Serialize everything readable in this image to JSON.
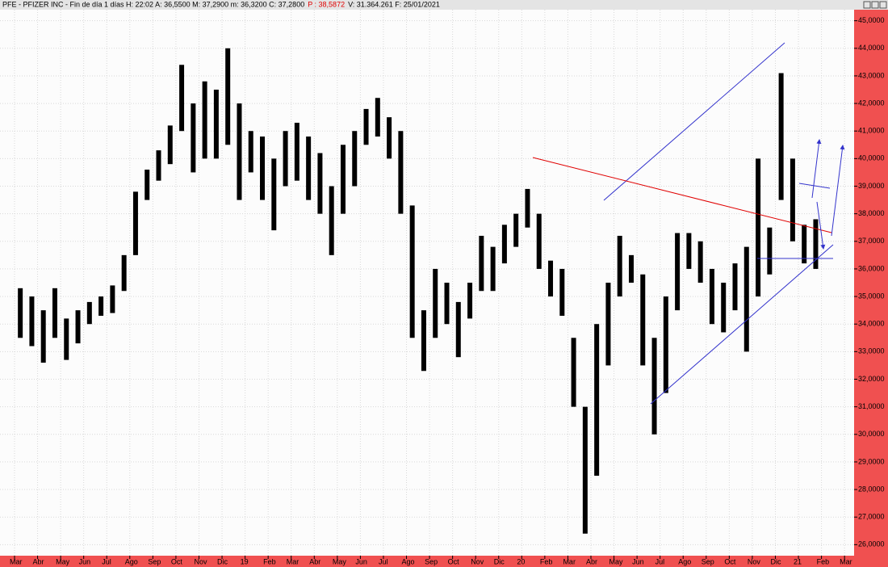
{
  "header": {
    "info": "PFE - PFIZER INC - Fin de día 1 días  H: 22:02  A: 36,5500  M: 37,2900  m: 36,3200  C: 37,2800",
    "p": "P : 38,5872",
    "rest": "V: 31.364.261  F: 25/01/2021"
  },
  "chart_data": {
    "type": "ohlc",
    "categories": [
      "Mar",
      null,
      "Abr",
      null,
      "May",
      null,
      "Jun",
      null,
      "Jul",
      null,
      "Ago",
      null,
      "Sep",
      null,
      "Oct",
      null,
      "Nov",
      null,
      "Dic",
      null,
      "19",
      null,
      "Feb",
      null,
      "Mar",
      null,
      "Abr",
      null,
      "May",
      null,
      "Jun",
      null,
      "Jul",
      null,
      "Ago",
      null,
      "Sep",
      null,
      "Oct",
      null,
      "Nov",
      null,
      "Dic",
      null,
      "20",
      null,
      "Feb",
      null,
      "Mar",
      null,
      "Abr",
      null,
      "May",
      null,
      "Jun",
      null,
      "Jul",
      null,
      "Ago",
      null,
      "Sep",
      null,
      "Oct",
      null,
      "Nov",
      null,
      "Dic",
      null,
      "21",
      null,
      "Feb",
      null,
      "Mar",
      null
    ],
    "lows": [
      33.5,
      33.2,
      32.6,
      33.5,
      32.7,
      33.3,
      34.0,
      34.3,
      34.4,
      35.2,
      36.5,
      38.5,
      39.2,
      39.8,
      41.0,
      39.5,
      40.0,
      40.0,
      40.5,
      38.5,
      39.5,
      38.5,
      37.4,
      39.0,
      39.2,
      38.5,
      38.0,
      36.5,
      38.0,
      39.0,
      40.5,
      40.8,
      40.0,
      38.0,
      33.5,
      32.3,
      33.5,
      34.0,
      32.8,
      34.2,
      35.2,
      35.2,
      36.2,
      36.8,
      37.5,
      36.0,
      35.0,
      34.3,
      31.0,
      26.4,
      28.5,
      32.5,
      35.0,
      35.5,
      32.5,
      30.0,
      31.5,
      34.5,
      36.0,
      35.5,
      34.0,
      33.7,
      34.5,
      33.0,
      35.0,
      35.8,
      38.5,
      37.0,
      36.2,
      36.0,
      null,
      null,
      null,
      null
    ],
    "highs": [
      35.3,
      35.0,
      34.5,
      35.3,
      34.2,
      34.5,
      34.8,
      35.0,
      35.4,
      36.5,
      38.8,
      39.6,
      40.3,
      41.2,
      43.4,
      42.0,
      42.8,
      42.5,
      44.0,
      42.0,
      41.0,
      40.8,
      40.0,
      41.0,
      41.3,
      40.8,
      40.2,
      39.0,
      40.5,
      41.0,
      41.8,
      42.2,
      41.5,
      41.0,
      38.3,
      34.5,
      36.0,
      35.5,
      34.8,
      35.5,
      37.2,
      36.8,
      37.6,
      38.0,
      38.9,
      38.0,
      36.3,
      36.0,
      33.5,
      31.0,
      34.0,
      35.5,
      37.2,
      36.5,
      35.8,
      33.5,
      35.0,
      37.3,
      37.3,
      37.0,
      36.0,
      35.5,
      36.2,
      36.8,
      40.0,
      37.5,
      43.1,
      40.0,
      37.6,
      37.8,
      null,
      null,
      null,
      null
    ],
    "color": "#000000",
    "ylim": [
      25.6,
      45.4
    ],
    "yticks": [
      {
        "value": 26,
        "label": "26,0000"
      },
      {
        "value": 27,
        "label": "27,0000"
      },
      {
        "value": 28,
        "label": "28,0000"
      },
      {
        "value": 29,
        "label": "29,0000"
      },
      {
        "value": 30,
        "label": "30,0000"
      },
      {
        "value": 31,
        "label": "31,0000"
      },
      {
        "value": 32,
        "label": "32,0000"
      },
      {
        "value": 33,
        "label": "33,0000"
      },
      {
        "value": 34,
        "label": "34,0000"
      },
      {
        "value": 35,
        "label": "35,0000"
      },
      {
        "value": 36,
        "label": "36,0000"
      },
      {
        "value": 37,
        "label": "37,0000"
      },
      {
        "value": 38,
        "label": "38,0000"
      },
      {
        "value": 39,
        "label": "39,0000"
      },
      {
        "value": 40,
        "label": "40,0000"
      },
      {
        "value": 41,
        "label": "41,0000"
      },
      {
        "value": 42,
        "label": "42,0000"
      },
      {
        "value": 43,
        "label": "43,0000"
      },
      {
        "value": 44,
        "label": "44,0000"
      },
      {
        "value": 45,
        "label": "45,0000"
      }
    ],
    "grid": true
  }
}
